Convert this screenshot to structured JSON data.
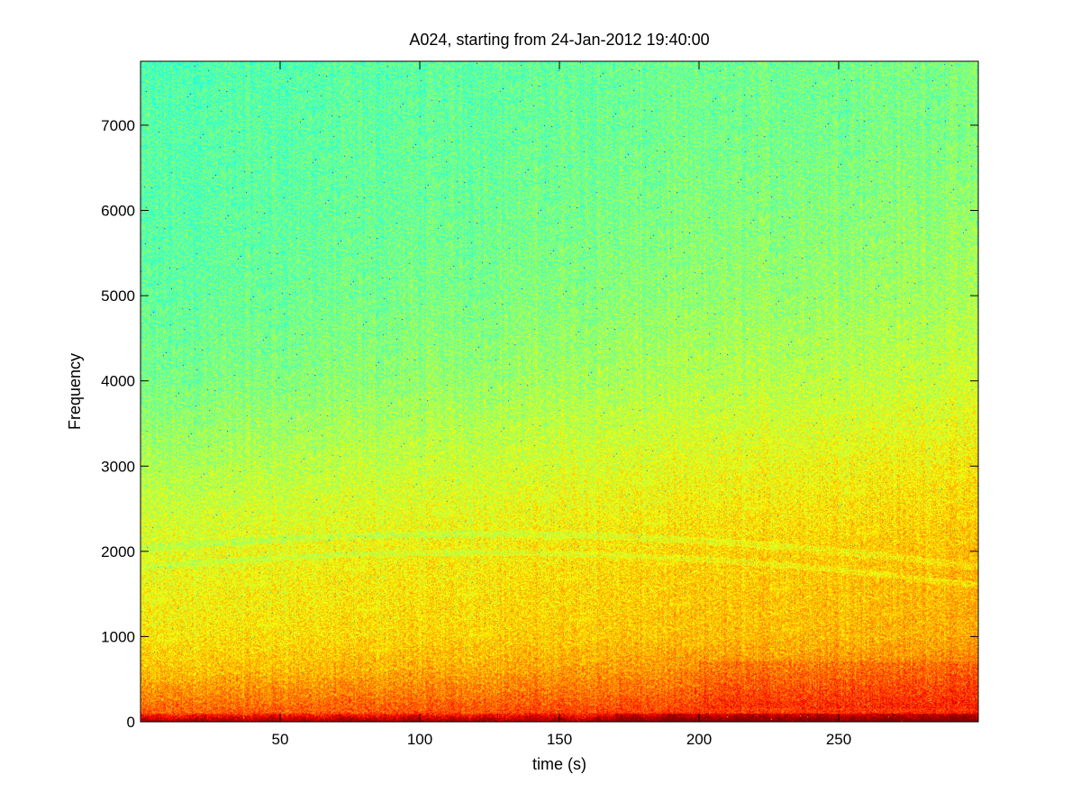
{
  "chart_data": {
    "type": "heatmap",
    "title": "A024, starting from 24-Jan-2012 19:40:00",
    "xlabel": "time (s)",
    "ylabel": "Frequency",
    "xlim": [
      0,
      300
    ],
    "ylim": [
      0,
      7750
    ],
    "xticks": [
      50,
      100,
      150,
      200,
      250
    ],
    "yticks": [
      0,
      1000,
      2000,
      3000,
      4000,
      5000,
      6000,
      7000
    ],
    "colormap": "jet",
    "grid": false,
    "legend": "none",
    "intensity_profile": {
      "description": "relative power (0-1 on jet colormap), highest near 0 Hz",
      "frequency_points": [
        0,
        100,
        300,
        600,
        1000,
        2000,
        3000,
        4000,
        5000,
        6000,
        7000,
        7750
      ],
      "level_early_time": [
        0.95,
        0.78,
        0.74,
        0.68,
        0.64,
        0.6,
        0.54,
        0.49,
        0.47,
        0.46,
        0.46,
        0.45
      ],
      "level_late_time": [
        0.96,
        0.84,
        0.8,
        0.76,
        0.71,
        0.69,
        0.64,
        0.58,
        0.54,
        0.52,
        0.5,
        0.5
      ]
    },
    "features": [
      {
        "name": "low-frequency band",
        "frequency_range": [
          0,
          400
        ],
        "color": "#ff3000"
      },
      {
        "name": "high-frequency noise floor",
        "frequency_range": [
          3000,
          7750
        ],
        "color": "#5ef0a0"
      }
    ]
  },
  "colors": {
    "background": "#ffffff",
    "axes": "#000000",
    "jet_low_mid": "#5ef0a0",
    "jet_mid": "#e0ff20",
    "jet_high": "#c00000"
  }
}
